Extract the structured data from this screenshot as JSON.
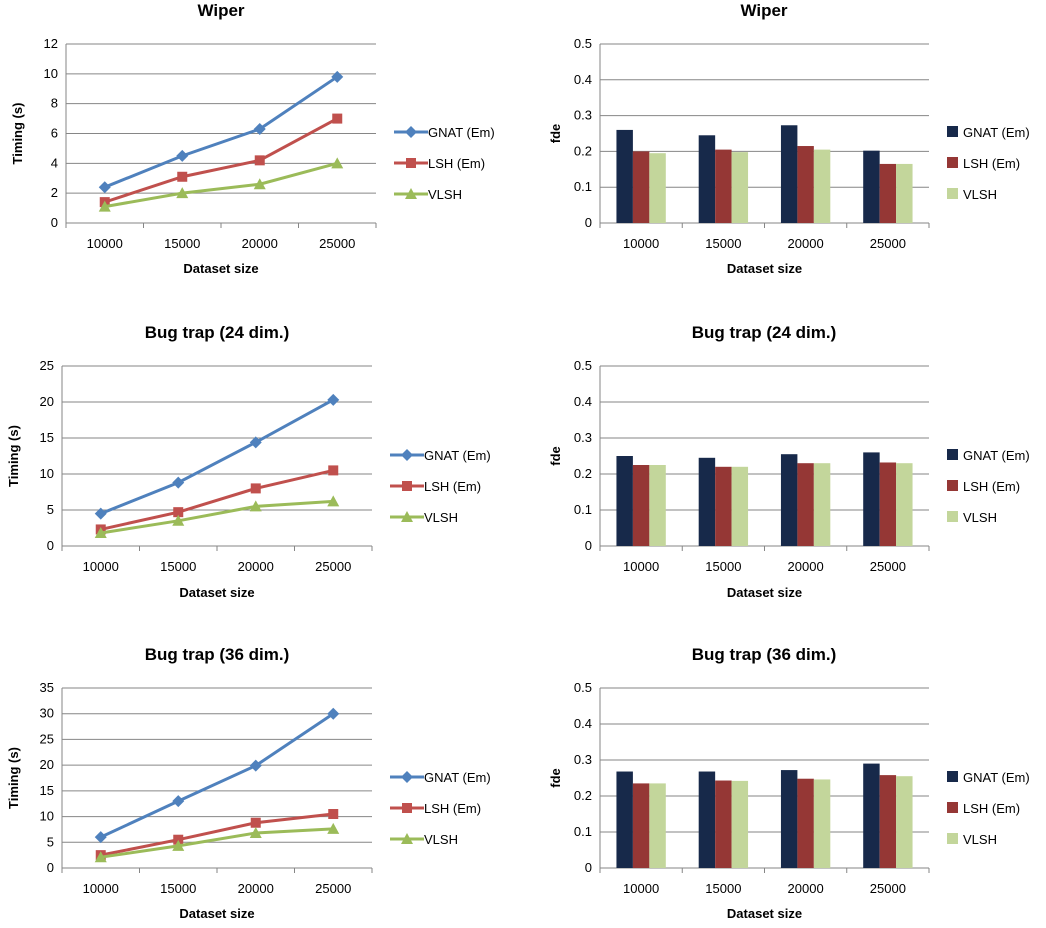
{
  "chart_data": [
    {
      "type": "line",
      "title": "Wiper",
      "xlabel": "Dataset size",
      "ylabel": "Timing (s)",
      "categories": [
        "10000",
        "15000",
        "20000",
        "25000"
      ],
      "ylim": [
        0,
        12
      ],
      "yticks": [
        "0",
        "2",
        "4",
        "6",
        "8",
        "10",
        "12"
      ],
      "grid": true,
      "legend_position": "right",
      "series": [
        {
          "name": "GNAT (Em)",
          "values": [
            2.4,
            4.5,
            6.3,
            9.8
          ],
          "color": "#4f81bd",
          "marker": "diamond"
        },
        {
          "name": "LSH (Em)",
          "values": [
            1.4,
            3.1,
            4.2,
            7.0
          ],
          "color": "#c0504d",
          "marker": "square"
        },
        {
          "name": "VLSH",
          "values": [
            1.1,
            2.0,
            2.6,
            4.0
          ],
          "color": "#9bbb59",
          "marker": "triangle"
        }
      ]
    },
    {
      "type": "bar",
      "title": "Wiper",
      "xlabel": "Dataset size",
      "ylabel": "fde",
      "categories": [
        "10000",
        "15000",
        "20000",
        "25000"
      ],
      "ylim": [
        0,
        0.5
      ],
      "yticks": [
        "0",
        "0.1",
        "0.2",
        "0.3",
        "0.4",
        "0.5"
      ],
      "grid": true,
      "legend_position": "right",
      "series": [
        {
          "name": "GNAT (Em)",
          "values": [
            0.26,
            0.245,
            0.273,
            0.202
          ],
          "color": "#17294a"
        },
        {
          "name": "LSH (Em)",
          "values": [
            0.2,
            0.205,
            0.215,
            0.165
          ],
          "color": "#953735"
        },
        {
          "name": "VLSH",
          "values": [
            0.195,
            0.198,
            0.205,
            0.165
          ],
          "color": "#c3d69b"
        }
      ]
    },
    {
      "type": "line",
      "title": "Bug trap (24 dim.)",
      "xlabel": "Dataset size",
      "ylabel": "Timing (s)",
      "categories": [
        "10000",
        "15000",
        "20000",
        "25000"
      ],
      "ylim": [
        0,
        25
      ],
      "yticks": [
        "0",
        "5",
        "10",
        "15",
        "20",
        "25"
      ],
      "grid": true,
      "legend_position": "right",
      "series": [
        {
          "name": "GNAT (Em)",
          "values": [
            4.5,
            8.8,
            14.4,
            20.3
          ],
          "color": "#4f81bd",
          "marker": "diamond"
        },
        {
          "name": "LSH (Em)",
          "values": [
            2.3,
            4.7,
            8.0,
            10.5
          ],
          "color": "#c0504d",
          "marker": "square"
        },
        {
          "name": "VLSH",
          "values": [
            1.8,
            3.5,
            5.5,
            6.2
          ],
          "color": "#9bbb59",
          "marker": "triangle"
        }
      ]
    },
    {
      "type": "bar",
      "title": "Bug trap (24 dim.)",
      "xlabel": "Dataset size",
      "ylabel": "fde",
      "categories": [
        "10000",
        "15000",
        "20000",
        "25000"
      ],
      "ylim": [
        0,
        0.5
      ],
      "yticks": [
        "0",
        "0.1",
        "0.2",
        "0.3",
        "0.4",
        "0.5"
      ],
      "grid": true,
      "legend_position": "right",
      "series": [
        {
          "name": "GNAT (Em)",
          "values": [
            0.25,
            0.245,
            0.255,
            0.26
          ],
          "color": "#17294a"
        },
        {
          "name": "LSH (Em)",
          "values": [
            0.225,
            0.22,
            0.23,
            0.232
          ],
          "color": "#953735"
        },
        {
          "name": "VLSH",
          "values": [
            0.225,
            0.22,
            0.23,
            0.23
          ],
          "color": "#c3d69b"
        }
      ]
    },
    {
      "type": "line",
      "title": "Bug trap (36 dim.)",
      "xlabel": "Dataset size",
      "ylabel": "Timing (s)",
      "categories": [
        "10000",
        "15000",
        "20000",
        "25000"
      ],
      "ylim": [
        0,
        35
      ],
      "yticks": [
        "0",
        "5",
        "10",
        "15",
        "20",
        "25",
        "30",
        "35"
      ],
      "grid": true,
      "legend_position": "right",
      "series": [
        {
          "name": "GNAT (Em)",
          "values": [
            6.0,
            13.0,
            19.9,
            30.0
          ],
          "color": "#4f81bd",
          "marker": "diamond"
        },
        {
          "name": "LSH (Em)",
          "values": [
            2.5,
            5.5,
            8.8,
            10.5
          ],
          "color": "#c0504d",
          "marker": "square"
        },
        {
          "name": "VLSH",
          "values": [
            2.1,
            4.3,
            6.8,
            7.6
          ],
          "color": "#9bbb59",
          "marker": "triangle"
        }
      ]
    },
    {
      "type": "bar",
      "title": "Bug trap (36 dim.)",
      "xlabel": "Dataset size",
      "ylabel": "fde",
      "categories": [
        "10000",
        "15000",
        "20000",
        "25000"
      ],
      "ylim": [
        0,
        0.5
      ],
      "yticks": [
        "0",
        "0.1",
        "0.2",
        "0.3",
        "0.4",
        "0.5"
      ],
      "grid": true,
      "legend_position": "right",
      "series": [
        {
          "name": "GNAT (Em)",
          "values": [
            0.268,
            0.268,
            0.272,
            0.29
          ],
          "color": "#17294a"
        },
        {
          "name": "LSH (Em)",
          "values": [
            0.235,
            0.243,
            0.248,
            0.258
          ],
          "color": "#953735"
        },
        {
          "name": "VLSH",
          "values": [
            0.235,
            0.242,
            0.246,
            0.255
          ],
          "color": "#c3d69b"
        }
      ]
    }
  ]
}
